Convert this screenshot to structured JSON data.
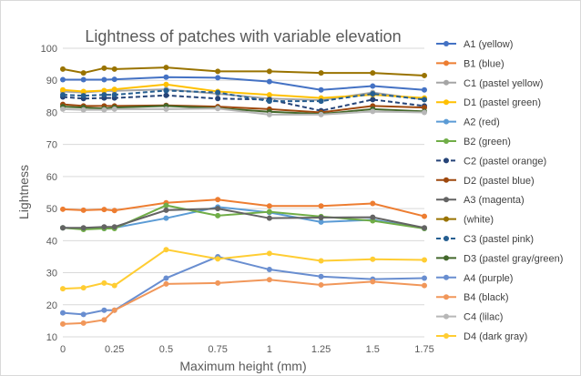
{
  "chart_data": {
    "type": "line",
    "title": "Lightness of patches with variable elevation",
    "xlabel": "Maximum height (mm)",
    "ylabel": "Lightness",
    "x": [
      0,
      0.1,
      0.2,
      0.25,
      0.5,
      0.75,
      1,
      1.25,
      1.5,
      1.75
    ],
    "x_tick_values": [
      0,
      0.25,
      0.5,
      0.75,
      1,
      1.25,
      1.5,
      1.75
    ],
    "x_tick_labels": [
      "0",
      "0.25",
      "0.5",
      "0.75",
      "1",
      "1.25",
      "1.5",
      "1.75"
    ],
    "xlim": [
      0,
      1.75
    ],
    "ylim": [
      10,
      100
    ],
    "y_ticks": [
      10,
      20,
      30,
      40,
      50,
      60,
      70,
      80,
      90,
      100
    ],
    "grid": "horizontal",
    "legend_position": "right",
    "series": [
      {
        "name": "A1 (yellow)",
        "color": "#4472c4",
        "dashed": false,
        "values": [
          90.2,
          90.2,
          90.2,
          90.3,
          91.0,
          90.8,
          89.6,
          87.0,
          88.2,
          87.0
        ]
      },
      {
        "name": "B1 (blue)",
        "color": "#ed7d31",
        "dashed": false,
        "values": [
          49.8,
          49.5,
          49.7,
          49.4,
          51.8,
          52.8,
          50.8,
          50.8,
          51.6,
          47.6
        ]
      },
      {
        "name": "C1 (pastel yellow)",
        "color": "#a5a5a5",
        "dashed": false,
        "values": [
          86.5,
          86.2,
          86.7,
          86.7,
          87.2,
          85.8,
          84.3,
          83.8,
          86.2,
          84.0
        ]
      },
      {
        "name": "D1 (pastel green)",
        "color": "#ffc000",
        "dashed": false,
        "values": [
          87.0,
          86.5,
          86.8,
          87.2,
          88.7,
          86.5,
          85.5,
          84.5,
          85.5,
          84.5
        ]
      },
      {
        "name": "A2 (red)",
        "color": "#5b9bd5",
        "dashed": false,
        "values": [
          44.0,
          43.8,
          43.8,
          44.0,
          47.0,
          50.5,
          48.8,
          45.8,
          46.5,
          43.8
        ]
      },
      {
        "name": "B2 (green)",
        "color": "#70ad47",
        "dashed": false,
        "values": [
          44.0,
          43.5,
          43.8,
          43.8,
          51.0,
          47.8,
          49.0,
          47.5,
          46.2,
          43.8
        ]
      },
      {
        "name": "C2 (pastel orange)",
        "color": "#264478",
        "dashed": true,
        "values": [
          84.8,
          84.3,
          84.5,
          84.5,
          85.3,
          84.3,
          84.0,
          80.5,
          84.0,
          82.0
        ]
      },
      {
        "name": "D2 (pastel blue)",
        "color": "#9e480e",
        "dashed": false,
        "values": [
          82.5,
          82.0,
          82.0,
          82.0,
          82.2,
          81.8,
          81.0,
          80.0,
          82.0,
          81.5
        ]
      },
      {
        "name": "A3 (magenta)",
        "color": "#636363",
        "dashed": false,
        "values": [
          44.0,
          44.0,
          44.3,
          44.3,
          49.5,
          50.0,
          47.0,
          47.2,
          47.3,
          44.0
        ]
      },
      {
        "name": "(white)",
        "color": "#997300",
        "dashed": false,
        "values": [
          93.5,
          92.3,
          93.8,
          93.5,
          94.0,
          92.8,
          92.8,
          92.3,
          92.3,
          91.5
        ]
      },
      {
        "name": "C3 (pastel pink)",
        "color": "#255e91",
        "dashed": true,
        "values": [
          85.5,
          85.2,
          85.5,
          85.5,
          86.8,
          86.2,
          83.5,
          83.5,
          85.8,
          84.0
        ]
      },
      {
        "name": "D3 (pastel gray/green)",
        "color": "#43682b",
        "dashed": false,
        "values": [
          81.8,
          81.5,
          81.2,
          81.5,
          82.0,
          81.3,
          80.2,
          79.5,
          81.0,
          80.3
        ]
      },
      {
        "name": "A4 (purple)",
        "color": "#698ed0",
        "dashed": false,
        "values": [
          17.5,
          17.0,
          18.3,
          18.3,
          28.3,
          35.0,
          31.0,
          28.8,
          28.0,
          28.3
        ]
      },
      {
        "name": "B4 (black)",
        "color": "#f1975a",
        "dashed": false,
        "values": [
          14.0,
          14.3,
          15.3,
          18.3,
          26.5,
          26.8,
          27.8,
          26.2,
          27.2,
          26.0
        ]
      },
      {
        "name": "C4 (lilac)",
        "color": "#b7b7b7",
        "dashed": false,
        "values": [
          81.0,
          80.8,
          80.8,
          81.0,
          81.0,
          81.2,
          79.3,
          79.3,
          80.3,
          80.0
        ]
      },
      {
        "name": "D4 (dark gray)",
        "color": "#ffcd33",
        "dashed": false,
        "values": [
          25.0,
          25.3,
          26.8,
          26.0,
          37.2,
          34.3,
          36.0,
          33.7,
          34.2,
          34.0
        ]
      }
    ]
  }
}
